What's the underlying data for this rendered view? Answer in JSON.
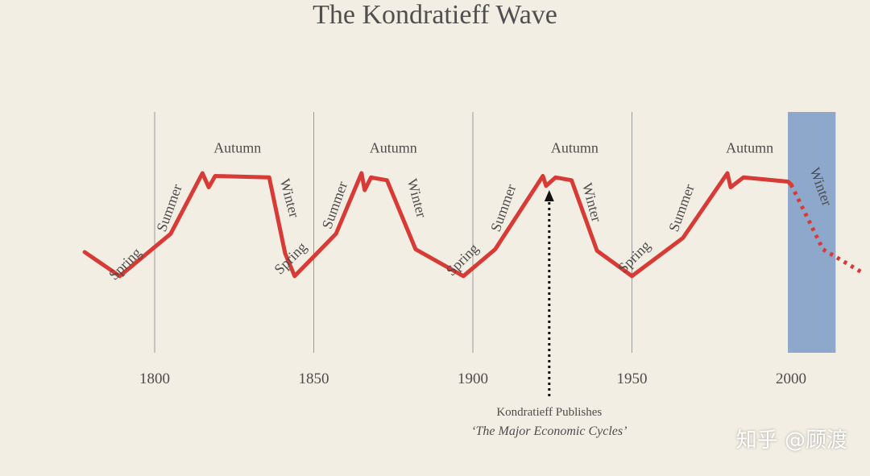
{
  "title": "The Kondratieff Wave",
  "watermark": "知乎 @顾渡",
  "colors": {
    "background": "#f2eee3",
    "wave": "#d83a35",
    "winter_band": "#8ea8cc",
    "text": "#4d4d4d",
    "gridline": "#9a9a9a"
  },
  "chart_data": {
    "type": "line",
    "title": "The Kondratieff Wave",
    "xlim": [
      1776,
      2022
    ],
    "x_ticks": [
      1800,
      1850,
      1900,
      1950,
      2000
    ],
    "x_tick_labels": [
      "1800",
      "1850",
      "1900",
      "1950",
      "2000"
    ],
    "grid_vertical_at": [
      1800,
      1850,
      1900,
      1950
    ],
    "y_axis": "none (relative economic level, 0-100)",
    "ylim": [
      0,
      100
    ],
    "series": [
      {
        "style": "solid",
        "points": [
          [
            1778,
            44
          ],
          [
            1789,
            27
          ],
          [
            1805,
            57
          ],
          [
            1815,
            100
          ],
          [
            1817,
            90
          ],
          [
            1819,
            98
          ],
          [
            1836,
            97
          ],
          [
            1841,
            43
          ],
          [
            1844,
            27
          ],
          [
            1857,
            57
          ],
          [
            1865,
            100
          ],
          [
            1866,
            88
          ],
          [
            1868,
            97
          ],
          [
            1873,
            95
          ],
          [
            1882,
            46
          ],
          [
            1897,
            27
          ],
          [
            1907,
            46
          ],
          [
            1922,
            98
          ],
          [
            1923,
            91
          ],
          [
            1926,
            97
          ],
          [
            1931,
            95
          ],
          [
            1939,
            45
          ],
          [
            1950,
            27
          ],
          [
            1966,
            54
          ],
          [
            1980,
            100
          ],
          [
            1981,
            90
          ],
          [
            1985,
            97
          ],
          [
            1999,
            94
          ],
          [
            2000,
            92
          ]
        ]
      },
      {
        "style": "dotted",
        "points": [
          [
            2000,
            92
          ],
          [
            2010,
            46
          ],
          [
            2022,
            30
          ]
        ]
      }
    ],
    "season_labels": [
      {
        "text": "Spring",
        "x": 1791,
        "y": 35,
        "rotate": -45
      },
      {
        "text": "Summer",
        "x": 1805,
        "y": 75,
        "rotate": -70
      },
      {
        "text": "Autumn",
        "x": 1826,
        "y": 117,
        "rotate": 0
      },
      {
        "text": "Winter",
        "x": 1842,
        "y": 82,
        "rotate": 75
      },
      {
        "text": "Spring",
        "x": 1843,
        "y": 39,
        "rotate": -45
      },
      {
        "text": "Summer",
        "x": 1857,
        "y": 77,
        "rotate": -70
      },
      {
        "text": "Autumn",
        "x": 1875,
        "y": 117,
        "rotate": 0
      },
      {
        "text": "Winter",
        "x": 1882,
        "y": 82,
        "rotate": 75
      },
      {
        "text": "Spring",
        "x": 1897,
        "y": 38,
        "rotate": -45
      },
      {
        "text": "Summer",
        "x": 1910,
        "y": 75,
        "rotate": -70
      },
      {
        "text": "Autumn",
        "x": 1932,
        "y": 117,
        "rotate": 0
      },
      {
        "text": "Winter",
        "x": 1937,
        "y": 79,
        "rotate": 75
      },
      {
        "text": "Spring",
        "x": 1951,
        "y": 40,
        "rotate": -45
      },
      {
        "text": "Summer",
        "x": 1966,
        "y": 75,
        "rotate": -70
      },
      {
        "text": "Autumn",
        "x": 1987,
        "y": 117,
        "rotate": 0
      },
      {
        "text": "Winter",
        "x": 2009,
        "y": 90,
        "rotate": 70
      }
    ],
    "shaded_regions": [
      {
        "label": "Winter",
        "x_start": 1999,
        "x_end": 2014
      }
    ],
    "annotation": {
      "x": 1924,
      "line1": "Kondratieff Publishes",
      "line2": "‘The Major Economic Cycles’",
      "arrow": "dotted, pointing up to the curve"
    }
  }
}
